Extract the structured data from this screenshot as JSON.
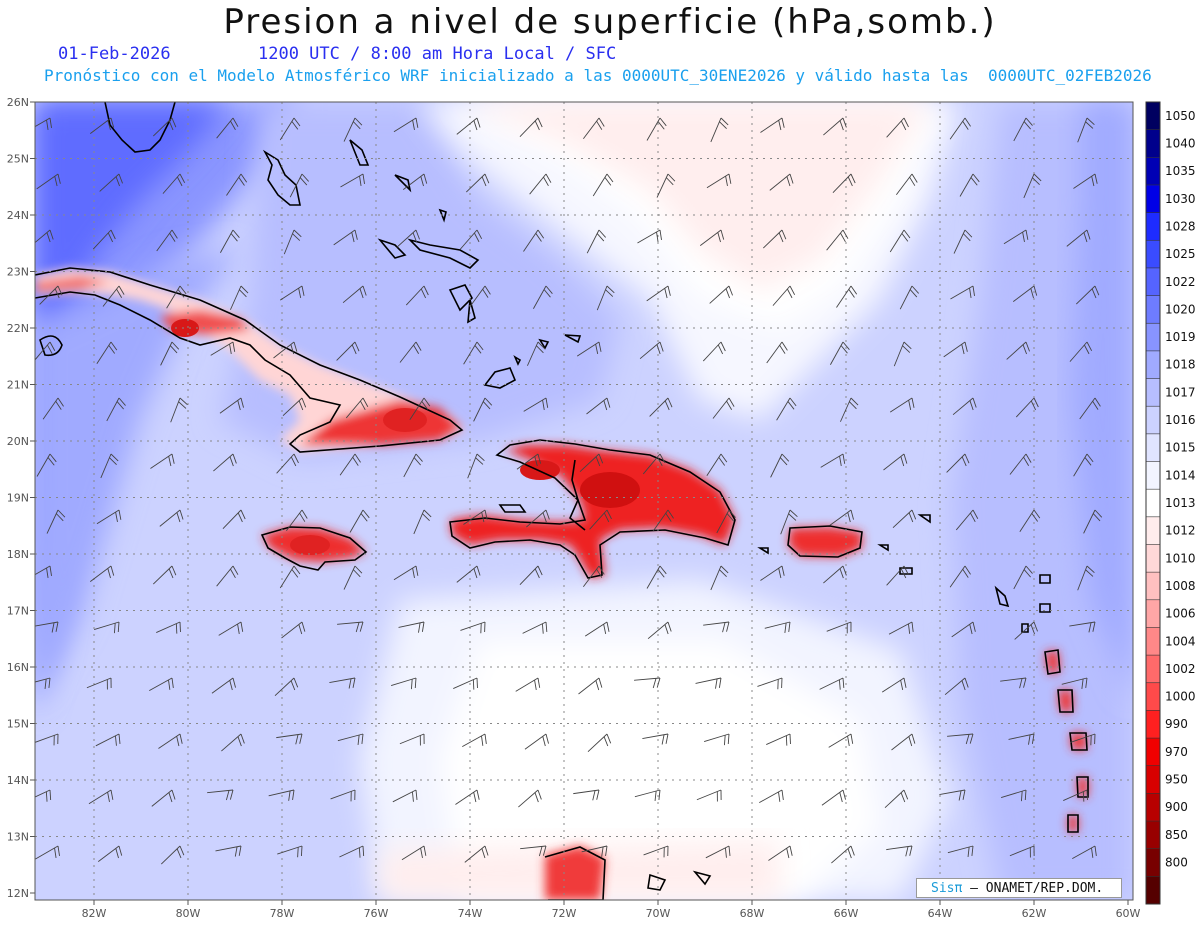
{
  "title": "Presion a nivel de superficie (hPa,somb.)",
  "date": "01-Feb-2026",
  "time_info": "1200 UTC / 8:00 am Hora Local / SFC",
  "forecast_info": "Pronóstico con el Modelo Atmosférico WRF inicializado a las 0000UTC_30ENE2026 y válido hasta las  0000UTC_02FEB2026",
  "credit": {
    "brand": "Sisπ",
    "text": "– ONAMET/REP.DOM."
  },
  "lat_labels": [
    "26N",
    "25N",
    "24N",
    "23N",
    "22N",
    "21N",
    "20N",
    "19N",
    "18N",
    "17N",
    "16N",
    "15N",
    "14N",
    "13N",
    "12N"
  ],
  "lon_labels": [
    "82W",
    "80W",
    "78W",
    "76W",
    "74W",
    "72W",
    "70W",
    "68W",
    "66W",
    "64W",
    "62W",
    "60W"
  ],
  "colorbar": {
    "levels": [
      "1050",
      "1040",
      "1035",
      "1030",
      "1028",
      "1025",
      "1022",
      "1020",
      "1019",
      "1018",
      "1017",
      "1016",
      "1015",
      "1014",
      "1013",
      "1012",
      "1010",
      "1008",
      "1006",
      "1004",
      "1002",
      "1000",
      "990",
      "970",
      "950",
      "900",
      "850",
      "800"
    ],
    "colors": [
      "#000060",
      "#00008c",
      "#0000b4",
      "#0000e6",
      "#1e2cff",
      "#3a4cff",
      "#5564ff",
      "#6e7cff",
      "#8894ff",
      "#a0aaff",
      "#b7beff",
      "#ccd2ff",
      "#e0e4ff",
      "#f2f4ff",
      "#ffffff",
      "#ffecec",
      "#ffd8d8",
      "#ffc0c0",
      "#ffa6a6",
      "#ff8888",
      "#ff6a6a",
      "#ff4a4a",
      "#ff2020",
      "#f00000",
      "#d80000",
      "#b80000",
      "#980000",
      "#780000",
      "#550000"
    ]
  }
}
